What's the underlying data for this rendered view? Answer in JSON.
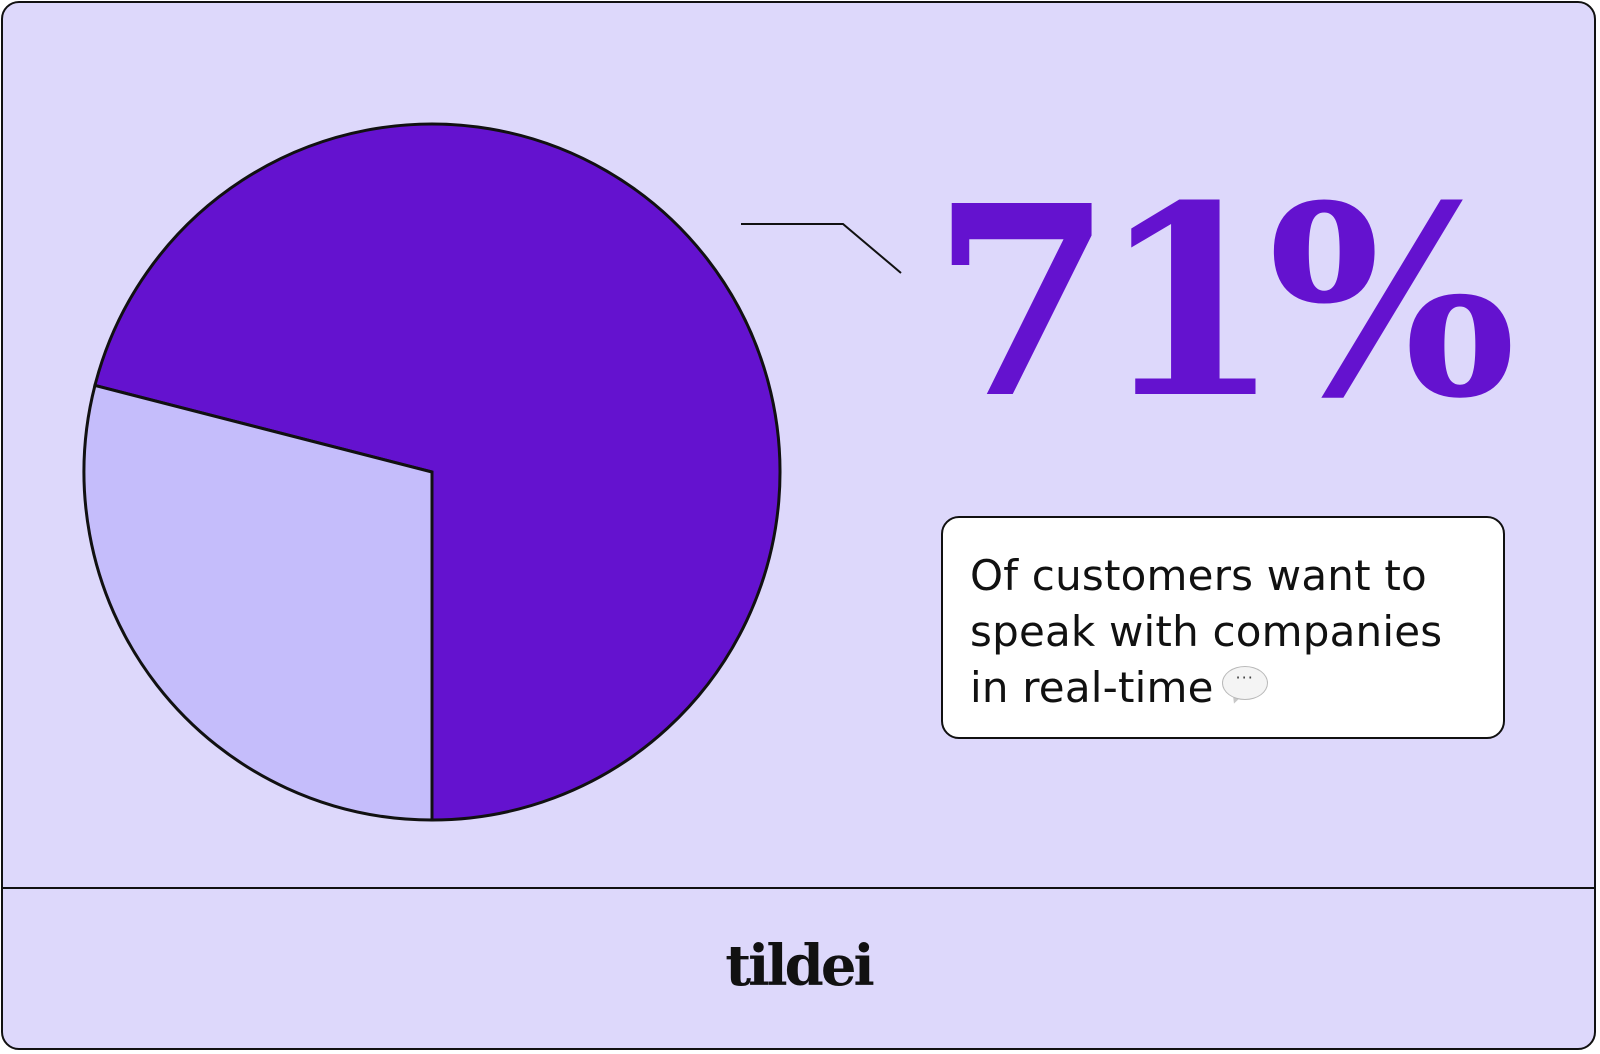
{
  "chart_data": {
    "type": "pie",
    "values": [
      71,
      29
    ],
    "colors": [
      "#6412cf",
      "#c5bdfb"
    ],
    "stat_label": "71%",
    "caption": {
      "line1": "Of customers want to",
      "line2": "speak with companies",
      "line3": "in real-time",
      "icon": "speech-bubble-icon"
    }
  },
  "brand": {
    "name": "tildei"
  },
  "colors": {
    "background": "#ddd8fb",
    "accent": "#6412cf",
    "light_slice": "#c5bdfb",
    "border": "#111111"
  }
}
